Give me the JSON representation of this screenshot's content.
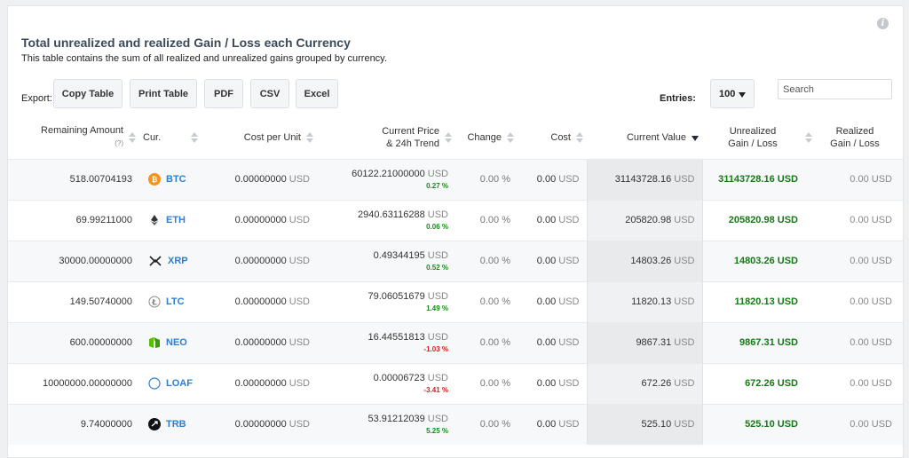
{
  "header": {
    "title": "Total unrealized and realized Gain / Loss each Currency",
    "subtitle": "This table contains the sum of all realized and unrealized gains grouped by currency."
  },
  "toolbar": {
    "export_label": "Export:",
    "buttons": [
      "Copy Table",
      "Print Table",
      "PDF",
      "CSV",
      "Excel"
    ],
    "entries_label": "Entries:",
    "entries_value": "100",
    "search_placeholder": "Search"
  },
  "columns": {
    "remaining": "Remaining Amount",
    "remaining_hint": "(?)",
    "cur": "Cur.",
    "cost_per_unit": "Cost per Unit",
    "current_price_l1": "Current Price",
    "current_price_l2": "& 24h Trend",
    "change": "Change",
    "cost": "Cost",
    "current_value": "Current Value",
    "unrealized_l1": "Unrealized",
    "unrealized_l2": "Gain / Loss",
    "realized_l1": "Realized",
    "realized_l2": "Gain / Loss"
  },
  "unit": "USD",
  "rows": [
    {
      "amount": "518.00704193",
      "symbol": "BTC",
      "icon": "bitcoin-icon",
      "cost_per_unit": "0.00000000",
      "price": "60122.21000000",
      "trend": "0.27 %",
      "trend_dir": "pos",
      "change": "0.00 %",
      "cost": "0.00",
      "value": "31143728.16",
      "unrealized": "31143728.16 USD",
      "realized": "0.00 USD"
    },
    {
      "amount": "69.99211000",
      "symbol": "ETH",
      "icon": "ethereum-icon",
      "cost_per_unit": "0.00000000",
      "price": "2940.63116288",
      "trend": "0.06 %",
      "trend_dir": "pos",
      "change": "0.00 %",
      "cost": "0.00",
      "value": "205820.98",
      "unrealized": "205820.98 USD",
      "realized": "0.00 USD"
    },
    {
      "amount": "30000.00000000",
      "symbol": "XRP",
      "icon": "xrp-icon",
      "cost_per_unit": "0.00000000",
      "price": "0.49344195",
      "trend": "0.52 %",
      "trend_dir": "pos",
      "change": "0.00 %",
      "cost": "0.00",
      "value": "14803.26",
      "unrealized": "14803.26 USD",
      "realized": "0.00 USD"
    },
    {
      "amount": "149.50740000",
      "symbol": "LTC",
      "icon": "litecoin-icon",
      "cost_per_unit": "0.00000000",
      "price": "79.06051679",
      "trend": "1.49 %",
      "trend_dir": "pos",
      "change": "0.00 %",
      "cost": "0.00",
      "value": "11820.13",
      "unrealized": "11820.13 USD",
      "realized": "0.00 USD"
    },
    {
      "amount": "600.00000000",
      "symbol": "NEO",
      "icon": "neo-icon",
      "cost_per_unit": "0.00000000",
      "price": "16.44551813",
      "trend": "-1.03 %",
      "trend_dir": "neg",
      "change": "0.00 %",
      "cost": "0.00",
      "value": "9867.31",
      "unrealized": "9867.31 USD",
      "realized": "0.00 USD"
    },
    {
      "amount": "10000000.00000000",
      "symbol": "LOAF",
      "icon": "loaf-icon",
      "cost_per_unit": "0.00000000",
      "price": "0.00006723",
      "trend": "-3.41 %",
      "trend_dir": "neg",
      "change": "0.00 %",
      "cost": "0.00",
      "value": "672.26",
      "unrealized": "672.26 USD",
      "realized": "0.00 USD"
    },
    {
      "amount": "9.74000000",
      "symbol": "TRB",
      "icon": "tellor-icon",
      "cost_per_unit": "0.00000000",
      "price": "53.91212039",
      "trend": "5.25 %",
      "trend_dir": "pos",
      "change": "0.00 %",
      "cost": "0.00",
      "value": "525.10",
      "unrealized": "525.10 USD",
      "realized": "0.00 USD"
    }
  ]
}
